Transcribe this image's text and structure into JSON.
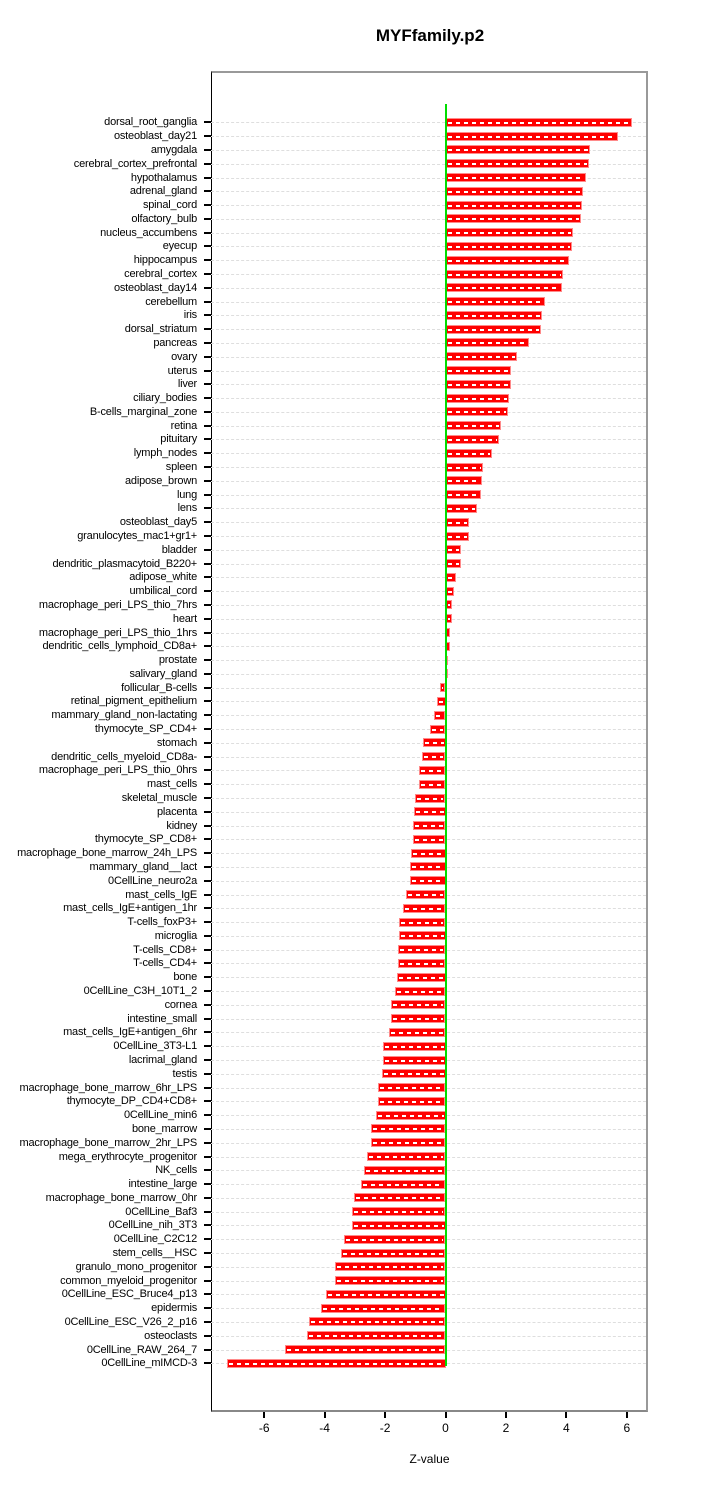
{
  "title": "MYFfamily.p2",
  "colors": {
    "bar": "#ff0000",
    "bar_edge": "#ff8a8a",
    "zero_line": "#00dd00",
    "grid": "#dedede",
    "frame": "#999999",
    "axis": "#000000"
  },
  "chart_data": {
    "type": "bar",
    "orientation": "horizontal",
    "title": "MYFfamily.p2",
    "xlabel": "Z-value",
    "ylabel": "",
    "grid": true,
    "zero_line": 0,
    "xlim": [
      -7.76,
      6.7
    ],
    "x_ticks": [
      -6,
      -4,
      -2,
      0,
      2,
      4,
      6
    ],
    "x_tick_labels": [
      "-6",
      "-4",
      "-2",
      "0",
      "2",
      "4",
      "6"
    ],
    "categories": [
      "dorsal_root_ganglia",
      "osteoblast_day21",
      "amygdala",
      "cerebral_cortex_prefrontal",
      "hypothalamus",
      "adrenal_gland",
      "spinal_cord",
      "olfactory_bulb",
      "nucleus_accumbens",
      "eyecup",
      "hippocampus",
      "cerebral_cortex",
      "osteoblast_day14",
      "cerebellum",
      "iris",
      "dorsal_striatum",
      "pancreas",
      "ovary",
      "uterus",
      "liver",
      "ciliary_bodies",
      "B-cells_marginal_zone",
      "retina",
      "pituitary",
      "lymph_nodes",
      "spleen",
      "adipose_brown",
      "lung",
      "lens",
      "osteoblast_day5",
      "granulocytes_mac1+gr1+",
      "bladder",
      "dendritic_plasmacytoid_B220+",
      "adipose_white",
      "umbilical_cord",
      "macrophage_peri_LPS_thio_7hrs",
      "heart",
      "macrophage_peri_LPS_thio_1hrs",
      "dendritic_cells_lymphoid_CD8a+",
      "prostate",
      "salivary_gland",
      "follicular_B-cells",
      "retinal_pigment_epithelium",
      "mammary_gland_non-lactating",
      "thymocyte_SP_CD4+",
      "stomach",
      "dendritic_cells_myeloid_CD8a-",
      "macrophage_peri_LPS_thio_0hrs",
      "mast_cells",
      "skeletal_muscle",
      "placenta",
      "kidney",
      "thymocyte_SP_CD8+",
      "macrophage_bone_marrow_24h_LPS",
      "mammary_gland__lact",
      "0CellLine_neuro2a",
      "mast_cells_IgE",
      "mast_cells_IgE+antigen_1hr",
      "T-cells_foxP3+",
      "microglia",
      "T-cells_CD8+",
      "T-cells_CD4+",
      "bone",
      "0CellLine_C3H_10T1_2",
      "cornea",
      "intestine_small",
      "mast_cells_IgE+antigen_6hr",
      "0CellLine_3T3-L1",
      "lacrimal_gland",
      "testis",
      "macrophage_bone_marrow_6hr_LPS",
      "thymocyte_DP_CD4+CD8+",
      "0CellLine_min6",
      "bone_marrow",
      "macrophage_bone_marrow_2hr_LPS",
      "mega_erythrocyte_progenitor",
      "NK_cells",
      "intestine_large",
      "macrophage_bone_marrow_0hr",
      "0CellLine_Baf3",
      "0CellLine_nih_3T3",
      "0CellLine_C2C12",
      "stem_cells__HSC",
      "granulo_mono_progenitor",
      "common_myeloid_progenitor",
      "0CellLine_ESC_Bruce4_p13",
      "epidermis",
      "0CellLine_ESC_V26_2_p16",
      "osteoclasts",
      "0CellLine_RAW_264_7",
      "0CellLine_mIMCD-3"
    ],
    "values": [
      6.16,
      5.7,
      4.79,
      4.75,
      4.64,
      4.54,
      4.53,
      4.49,
      4.23,
      4.18,
      4.09,
      3.88,
      3.86,
      3.3,
      3.2,
      3.16,
      2.77,
      2.37,
      2.17,
      2.16,
      2.1,
      2.07,
      1.84,
      1.77,
      1.55,
      1.23,
      1.21,
      1.17,
      1.03,
      0.78,
      0.77,
      0.51,
      0.5,
      0.35,
      0.27,
      0.22,
      0.21,
      0.15,
      0.14,
      0.06,
      0.01,
      -0.18,
      -0.29,
      -0.37,
      -0.51,
      -0.75,
      -0.77,
      -0.87,
      -0.89,
      -1.0,
      -1.06,
      -1.07,
      -1.09,
      -1.15,
      -1.17,
      -1.18,
      -1.32,
      -1.42,
      -1.53,
      -1.54,
      -1.56,
      -1.57,
      -1.62,
      -1.68,
      -1.79,
      -1.81,
      -1.86,
      -2.06,
      -2.08,
      -2.1,
      -2.22,
      -2.23,
      -2.3,
      -2.47,
      -2.48,
      -2.59,
      -2.69,
      -2.81,
      -3.02,
      -3.09,
      -3.11,
      -3.35,
      -3.47,
      -3.65,
      -3.67,
      -3.97,
      -4.11,
      -4.53,
      -4.58,
      -5.32,
      -7.23
    ]
  }
}
